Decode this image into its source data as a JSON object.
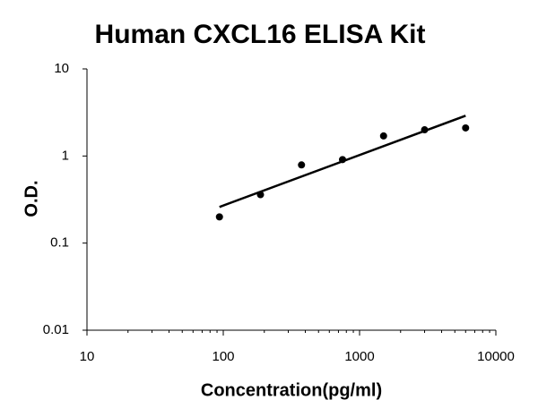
{
  "chart_data": {
    "type": "scatter",
    "title": "Human CXCL16 ELISA Kit",
    "x_label": "Concentration(pg/ml)",
    "y_label": "O.D.",
    "x": [
      93.75,
      187.5,
      375,
      750,
      1500,
      3000,
      6000
    ],
    "values": [
      0.2,
      0.36,
      0.79,
      0.91,
      1.7,
      2.0,
      2.1
    ],
    "color": "#000000",
    "trendline": {
      "x": [
        93.75,
        6000
      ],
      "values": [
        0.26,
        2.9
      ]
    },
    "xlog": true,
    "ylog": true,
    "xlim": [
      10,
      10000
    ],
    "ylim": [
      0.01,
      10
    ],
    "xticks": [
      10,
      100,
      1000,
      10000
    ],
    "yticks": [
      0.01,
      0.1,
      1,
      10
    ],
    "xminorticks": [
      20,
      30,
      40,
      50,
      60,
      70,
      80,
      90,
      200,
      300,
      400,
      500,
      600,
      700,
      800,
      900,
      2000,
      3000,
      4000,
      5000,
      6000,
      7000,
      8000,
      9000
    ],
    "grid": false
  }
}
